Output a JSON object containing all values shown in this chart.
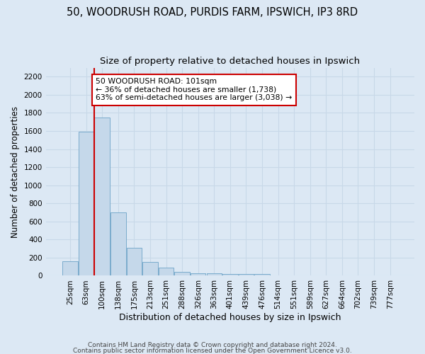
{
  "title1": "50, WOODRUSH ROAD, PURDIS FARM, IPSWICH, IP3 8RD",
  "title2": "Size of property relative to detached houses in Ipswich",
  "xlabel": "Distribution of detached houses by size in Ipswich",
  "ylabel": "Number of detached properties",
  "footer1": "Contains HM Land Registry data © Crown copyright and database right 2024.",
  "footer2": "Contains public sector information licensed under the Open Government Licence v3.0.",
  "categories": [
    "25sqm",
    "63sqm",
    "100sqm",
    "138sqm",
    "175sqm",
    "213sqm",
    "251sqm",
    "288sqm",
    "326sqm",
    "363sqm",
    "401sqm",
    "439sqm",
    "476sqm",
    "514sqm",
    "551sqm",
    "589sqm",
    "627sqm",
    "664sqm",
    "702sqm",
    "739sqm",
    "777sqm"
  ],
  "values": [
    160,
    1590,
    1750,
    700,
    310,
    155,
    90,
    45,
    30,
    25,
    20,
    20,
    20,
    3,
    2,
    2,
    1,
    1,
    1,
    1,
    1
  ],
  "bar_color": "#c5d8ea",
  "bar_edge_color": "#7aaBcc",
  "highlight_line_color": "#cc0000",
  "annotation_line1": "50 WOODRUSH ROAD: 101sqm",
  "annotation_line2": "← 36% of detached houses are smaller (1,738)",
  "annotation_line3": "63% of semi-detached houses are larger (3,038) →",
  "annotation_box_color": "#ffffff",
  "annotation_box_edge_color": "#cc0000",
  "ylim": [
    0,
    2300
  ],
  "yticks": [
    0,
    200,
    400,
    600,
    800,
    1000,
    1200,
    1400,
    1600,
    1800,
    2000,
    2200
  ],
  "grid_color": "#c8d8e8",
  "background_color": "#dce8f4",
  "title_fontsize": 10.5,
  "subtitle_fontsize": 9.5,
  "tick_fontsize": 7.5,
  "ylabel_fontsize": 8.5,
  "xlabel_fontsize": 9,
  "footer_fontsize": 6.5
}
